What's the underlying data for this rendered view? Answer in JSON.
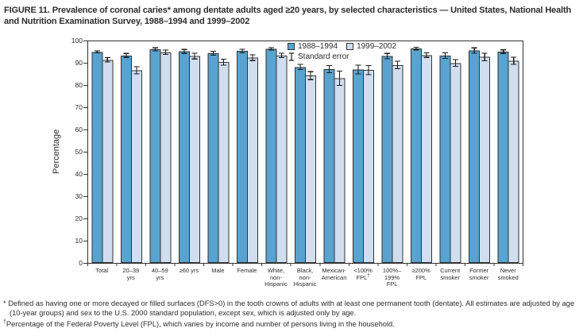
{
  "figure": {
    "title": "FIGURE 11. Prevalence of coronal caries* among dentate adults aged ≥20 years, by selected characteristics — United States, National Health and Nutrition Examination Survey, 1988–1994 and 1999–2002"
  },
  "legend": {
    "se_label": "Standard error"
  },
  "chart_data": {
    "type": "bar",
    "title": "Prevalence of coronal caries among dentate adults aged ≥20 years, 1988–1994 and 1999–2002",
    "xlabel": "",
    "ylabel": "Percentage",
    "ylim": [
      0,
      100
    ],
    "yticks": [
      0,
      10,
      20,
      30,
      40,
      50,
      60,
      70,
      80,
      90,
      100
    ],
    "grid": false,
    "legend_position": "top-center-inside",
    "error_bars": "standard error",
    "categories": [
      "Total",
      "20–39\nyrs",
      "40–59\nyrs",
      "≥60 yrs",
      "Male",
      "Female",
      "White,\nnon-\nHispanic",
      "Black,\nnon-\nHispanic",
      "Mexican-\nAmerican",
      "<100%\nFPL†",
      "100%–\n199%\nFPL",
      "≥200%\nFPL",
      "Current\nsmoker",
      "Former\nsmoker",
      "Never\nsmoked"
    ],
    "series": [
      {
        "name": "1988–1994",
        "color": "#58A3CF",
        "values": [
          94.9,
          93.3,
          96.0,
          95.1,
          94.3,
          95.3,
          96.3,
          88.1,
          87.2,
          87.0,
          93.0,
          96.4,
          93.2,
          95.5,
          95.0
        ],
        "standard_errors": [
          0.5,
          0.9,
          0.7,
          0.9,
          0.9,
          0.8,
          0.5,
          1.2,
          1.6,
          2.0,
          1.2,
          0.6,
          1.2,
          1.2,
          0.8
        ]
      },
      {
        "name": "1999–2002",
        "color": "#D0DEEF",
        "values": [
          91.3,
          86.6,
          94.7,
          93.0,
          90.3,
          92.3,
          93.3,
          84.2,
          83.0,
          86.7,
          89.0,
          93.4,
          89.9,
          92.6,
          90.9
        ],
        "standard_errors": [
          1.0,
          1.6,
          1.0,
          1.3,
          1.3,
          1.3,
          1.0,
          1.8,
          3.2,
          2.0,
          1.7,
          1.0,
          1.5,
          1.7,
          1.6
        ]
      }
    ]
  },
  "footnotes": [
    {
      "marker": "*",
      "text": " Defined as having one or more decayed or filled surfaces (DFS>0) in the tooth crowns of adults with at least one permanent tooth (dentate). All estimates are adjusted by age (10-year groups) and sex to the U.S. 2000 standard population, except sex, which is adjusted only by age."
    },
    {
      "marker": "†",
      "text": "Percentage of the Federal Poverty Level (FPL), which varies by income and number of persons living in the household."
    }
  ],
  "colors": {
    "bar_border": "#333333",
    "axis": "#333333",
    "error_bar": "#1a1a1a",
    "text": "#2d2d2d",
    "background": "#ffffff"
  }
}
